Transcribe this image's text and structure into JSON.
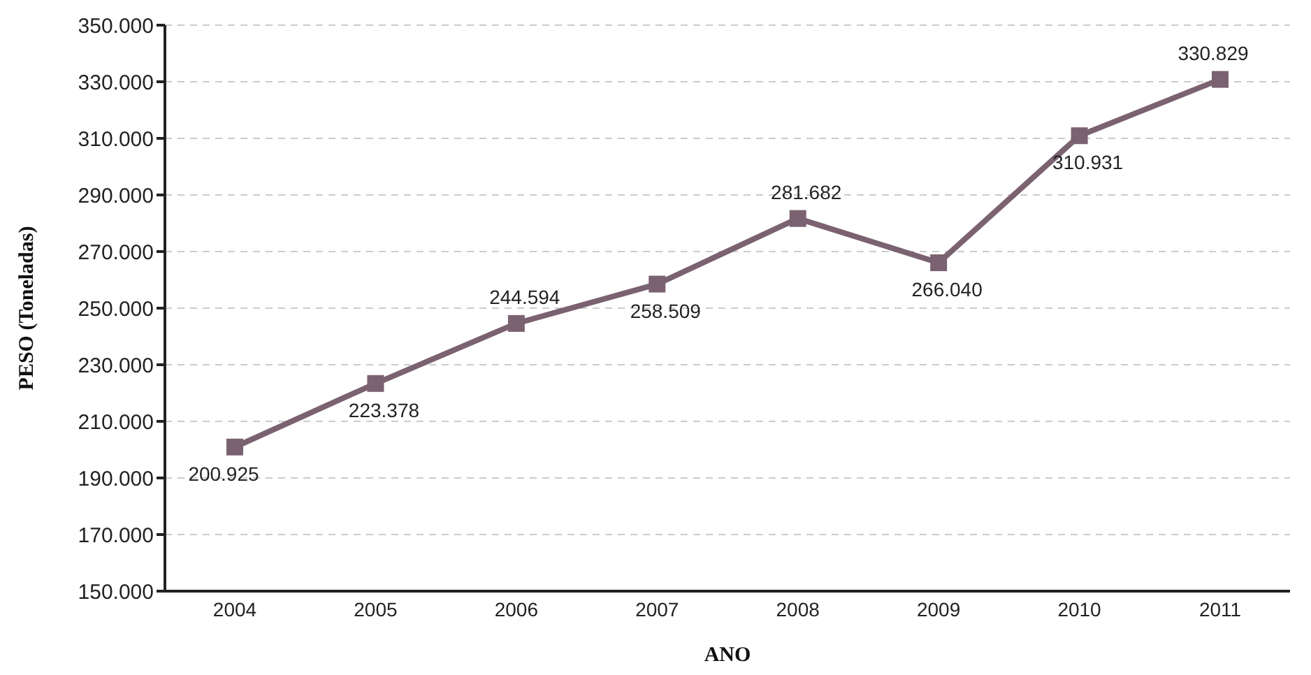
{
  "chart_data": {
    "type": "line",
    "xlabel": "ANO",
    "ylabel": "PESO (Toneladas)",
    "categories": [
      "2004",
      "2005",
      "2006",
      "2007",
      "2008",
      "2009",
      "2010",
      "2011"
    ],
    "values": [
      200925,
      223378,
      244594,
      258509,
      281682,
      266040,
      310931,
      330829
    ],
    "value_labels": [
      "200.925",
      "223.378",
      "244.594",
      "258.509",
      "281.682",
      "266.040",
      "310.931",
      "330.829"
    ],
    "color": "#7b6270",
    "marker": "square",
    "line_style": "solid",
    "grid": "y",
    "legend": false,
    "ylim": [
      150000,
      350000
    ],
    "yticks": [
      {
        "value": 150000,
        "label": "150.000"
      },
      {
        "value": 170000,
        "label": "170.000"
      },
      {
        "value": 190000,
        "label": "190.000"
      },
      {
        "value": 210000,
        "label": "210.000"
      },
      {
        "value": 230000,
        "label": "230.000"
      },
      {
        "value": 250000,
        "label": "250.000"
      },
      {
        "value": 270000,
        "label": "270.000"
      },
      {
        "value": 290000,
        "label": "290.000"
      },
      {
        "value": 310000,
        "label": "310.000"
      },
      {
        "value": 330000,
        "label": "330.000"
      },
      {
        "value": 350000,
        "label": "350.000"
      }
    ]
  }
}
